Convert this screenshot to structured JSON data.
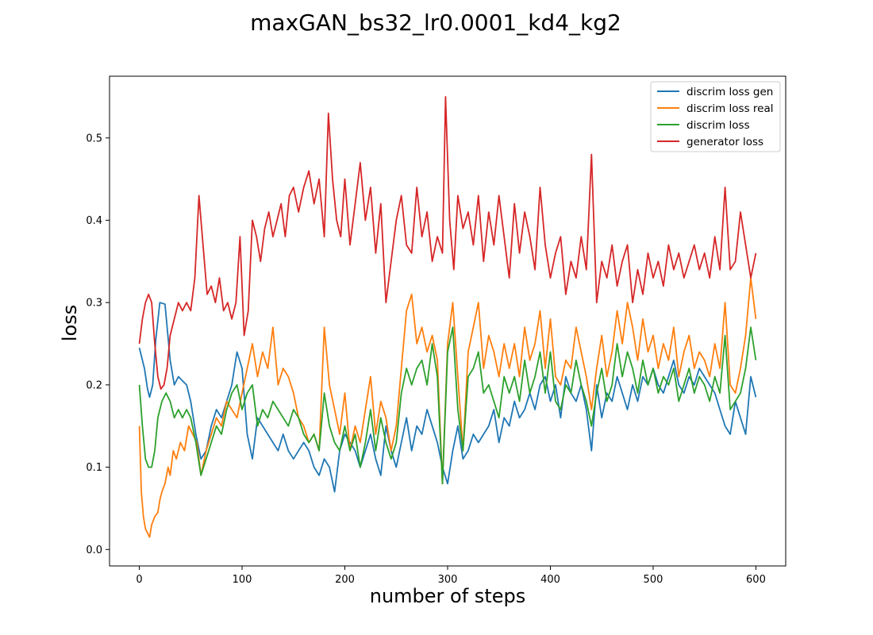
{
  "chart_data": {
    "type": "line",
    "title": "maxGAN_bs32_lr0.0001_kd4_kg2",
    "xlabel": "number of steps",
    "ylabel": "loss",
    "xlim": [
      -29,
      629
    ],
    "ylim": [
      -0.02,
      0.575
    ],
    "xticks": [
      0,
      100,
      200,
      300,
      400,
      500,
      600
    ],
    "yticks": [
      0.0,
      0.1,
      0.2,
      0.3,
      0.4,
      0.5
    ],
    "ytick_labels": [
      "0.0",
      "0.1",
      "0.2",
      "0.3",
      "0.4",
      "0.5"
    ],
    "grid": false,
    "legend": "top-right",
    "series": [
      {
        "name": "discrim loss gen",
        "color": "#1f77b4",
        "x": [
          0,
          5,
          8,
          10,
          13,
          16,
          20,
          25,
          30,
          34,
          38,
          42,
          46,
          50,
          55,
          60,
          65,
          70,
          75,
          80,
          85,
          90,
          95,
          100,
          105,
          110,
          115,
          120,
          125,
          130,
          135,
          140,
          145,
          150,
          155,
          160,
          165,
          170,
          175,
          180,
          185,
          190,
          195,
          200,
          205,
          210,
          215,
          220,
          225,
          230,
          235,
          240,
          245,
          250,
          255,
          260,
          265,
          270,
          275,
          280,
          285,
          290,
          295,
          300,
          305,
          310,
          315,
          320,
          325,
          330,
          335,
          340,
          345,
          350,
          355,
          360,
          365,
          370,
          375,
          380,
          385,
          390,
          395,
          400,
          405,
          410,
          415,
          420,
          425,
          430,
          435,
          440,
          445,
          450,
          455,
          460,
          465,
          470,
          475,
          480,
          485,
          490,
          495,
          500,
          505,
          510,
          515,
          520,
          525,
          530,
          535,
          540,
          545,
          550,
          555,
          560,
          565,
          570,
          575,
          580,
          585,
          590,
          595,
          600
        ],
        "y": [
          0.245,
          0.22,
          0.195,
          0.185,
          0.2,
          0.255,
          0.3,
          0.298,
          0.23,
          0.2,
          0.21,
          0.205,
          0.2,
          0.18,
          0.14,
          0.11,
          0.12,
          0.15,
          0.17,
          0.16,
          0.18,
          0.2,
          0.24,
          0.22,
          0.14,
          0.11,
          0.16,
          0.15,
          0.14,
          0.13,
          0.12,
          0.14,
          0.12,
          0.11,
          0.12,
          0.13,
          0.12,
          0.1,
          0.09,
          0.11,
          0.1,
          0.07,
          0.12,
          0.14,
          0.13,
          0.12,
          0.1,
          0.12,
          0.14,
          0.11,
          0.09,
          0.15,
          0.12,
          0.1,
          0.13,
          0.16,
          0.12,
          0.15,
          0.14,
          0.17,
          0.15,
          0.13,
          0.1,
          0.08,
          0.12,
          0.15,
          0.11,
          0.12,
          0.14,
          0.13,
          0.14,
          0.15,
          0.17,
          0.13,
          0.16,
          0.15,
          0.18,
          0.16,
          0.17,
          0.19,
          0.17,
          0.2,
          0.21,
          0.18,
          0.2,
          0.16,
          0.21,
          0.19,
          0.18,
          0.2,
          0.17,
          0.12,
          0.2,
          0.16,
          0.19,
          0.18,
          0.21,
          0.19,
          0.17,
          0.2,
          0.18,
          0.21,
          0.2,
          0.22,
          0.2,
          0.19,
          0.21,
          0.23,
          0.2,
          0.19,
          0.21,
          0.2,
          0.22,
          0.21,
          0.2,
          0.19,
          0.17,
          0.15,
          0.14,
          0.18,
          0.16,
          0.14,
          0.21,
          0.185
        ]
      },
      {
        "name": "discrim loss real",
        "color": "#ff7f0e",
        "x": [
          0,
          2,
          4,
          6,
          8,
          10,
          12,
          15,
          18,
          20,
          22,
          25,
          28,
          30,
          33,
          36,
          40,
          44,
          48,
          52,
          56,
          60,
          65,
          70,
          75,
          80,
          85,
          90,
          95,
          100,
          105,
          110,
          115,
          120,
          125,
          130,
          135,
          140,
          145,
          150,
          155,
          160,
          165,
          170,
          175,
          180,
          185,
          190,
          195,
          200,
          205,
          210,
          215,
          220,
          225,
          230,
          235,
          240,
          245,
          250,
          255,
          260,
          265,
          270,
          275,
          280,
          285,
          290,
          295,
          300,
          305,
          310,
          315,
          320,
          325,
          330,
          335,
          340,
          345,
          350,
          355,
          360,
          365,
          370,
          375,
          380,
          385,
          390,
          395,
          400,
          405,
          410,
          415,
          420,
          425,
          430,
          435,
          440,
          445,
          450,
          455,
          460,
          465,
          470,
          475,
          480,
          485,
          490,
          495,
          500,
          505,
          510,
          515,
          520,
          525,
          530,
          535,
          540,
          545,
          550,
          555,
          560,
          565,
          570,
          575,
          580,
          585,
          590,
          595,
          600
        ],
        "y": [
          0.15,
          0.07,
          0.04,
          0.025,
          0.02,
          0.015,
          0.03,
          0.04,
          0.045,
          0.06,
          0.07,
          0.08,
          0.1,
          0.09,
          0.12,
          0.11,
          0.13,
          0.12,
          0.15,
          0.14,
          0.13,
          0.09,
          0.12,
          0.14,
          0.16,
          0.15,
          0.18,
          0.17,
          0.16,
          0.19,
          0.22,
          0.25,
          0.21,
          0.24,
          0.22,
          0.27,
          0.2,
          0.22,
          0.21,
          0.19,
          0.16,
          0.15,
          0.13,
          0.14,
          0.12,
          0.27,
          0.2,
          0.17,
          0.14,
          0.19,
          0.12,
          0.15,
          0.13,
          0.17,
          0.21,
          0.14,
          0.18,
          0.16,
          0.12,
          0.15,
          0.22,
          0.29,
          0.31,
          0.25,
          0.27,
          0.24,
          0.26,
          0.23,
          0.08,
          0.25,
          0.3,
          0.21,
          0.12,
          0.24,
          0.27,
          0.3,
          0.22,
          0.26,
          0.24,
          0.21,
          0.25,
          0.22,
          0.25,
          0.21,
          0.27,
          0.23,
          0.25,
          0.29,
          0.22,
          0.28,
          0.21,
          0.2,
          0.23,
          0.22,
          0.27,
          0.24,
          0.21,
          0.17,
          0.22,
          0.26,
          0.21,
          0.24,
          0.29,
          0.25,
          0.3,
          0.27,
          0.23,
          0.28,
          0.24,
          0.26,
          0.22,
          0.25,
          0.23,
          0.27,
          0.21,
          0.24,
          0.26,
          0.22,
          0.24,
          0.23,
          0.21,
          0.25,
          0.22,
          0.3,
          0.2,
          0.19,
          0.22,
          0.26,
          0.33,
          0.28
        ]
      },
      {
        "name": "discrim loss",
        "color": "#2ca02c",
        "x": [
          0,
          3,
          6,
          9,
          12,
          15,
          18,
          22,
          26,
          30,
          34,
          38,
          42,
          46,
          50,
          55,
          60,
          65,
          70,
          75,
          80,
          85,
          90,
          95,
          100,
          105,
          110,
          115,
          120,
          125,
          130,
          135,
          140,
          145,
          150,
          155,
          160,
          165,
          170,
          175,
          180,
          185,
          190,
          195,
          200,
          205,
          210,
          215,
          220,
          225,
          230,
          235,
          240,
          245,
          250,
          255,
          260,
          265,
          270,
          275,
          280,
          285,
          290,
          295,
          300,
          305,
          310,
          315,
          320,
          325,
          330,
          335,
          340,
          345,
          350,
          355,
          360,
          365,
          370,
          375,
          380,
          385,
          390,
          395,
          400,
          405,
          410,
          415,
          420,
          425,
          430,
          435,
          440,
          445,
          450,
          455,
          460,
          465,
          470,
          475,
          480,
          485,
          490,
          495,
          500,
          505,
          510,
          515,
          520,
          525,
          530,
          535,
          540,
          545,
          550,
          555,
          560,
          565,
          570,
          575,
          580,
          585,
          590,
          595,
          600
        ],
        "y": [
          0.2,
          0.15,
          0.11,
          0.1,
          0.1,
          0.12,
          0.16,
          0.18,
          0.19,
          0.18,
          0.16,
          0.17,
          0.16,
          0.17,
          0.16,
          0.13,
          0.09,
          0.11,
          0.13,
          0.15,
          0.14,
          0.17,
          0.19,
          0.2,
          0.17,
          0.19,
          0.2,
          0.15,
          0.17,
          0.16,
          0.18,
          0.17,
          0.16,
          0.15,
          0.17,
          0.16,
          0.14,
          0.13,
          0.14,
          0.12,
          0.19,
          0.15,
          0.13,
          0.12,
          0.15,
          0.12,
          0.14,
          0.1,
          0.13,
          0.17,
          0.12,
          0.16,
          0.13,
          0.11,
          0.13,
          0.19,
          0.22,
          0.2,
          0.22,
          0.23,
          0.2,
          0.25,
          0.21,
          0.08,
          0.24,
          0.27,
          0.17,
          0.12,
          0.21,
          0.22,
          0.24,
          0.19,
          0.2,
          0.18,
          0.16,
          0.21,
          0.19,
          0.21,
          0.18,
          0.23,
          0.19,
          0.21,
          0.24,
          0.19,
          0.24,
          0.18,
          0.17,
          0.2,
          0.19,
          0.23,
          0.2,
          0.18,
          0.15,
          0.19,
          0.22,
          0.18,
          0.2,
          0.25,
          0.21,
          0.24,
          0.22,
          0.19,
          0.23,
          0.2,
          0.22,
          0.19,
          0.21,
          0.2,
          0.22,
          0.18,
          0.2,
          0.22,
          0.19,
          0.21,
          0.2,
          0.18,
          0.21,
          0.19,
          0.26,
          0.17,
          0.18,
          0.19,
          0.22,
          0.27,
          0.23
        ]
      },
      {
        "name": "generator loss",
        "color": "#d62728",
        "x": [
          0,
          3,
          6,
          9,
          12,
          15,
          18,
          21,
          24,
          27,
          30,
          34,
          38,
          42,
          46,
          50,
          54,
          58,
          62,
          66,
          70,
          74,
          78,
          82,
          86,
          90,
          94,
          98,
          102,
          106,
          110,
          114,
          118,
          122,
          126,
          130,
          134,
          138,
          142,
          146,
          150,
          155,
          160,
          165,
          170,
          175,
          180,
          184,
          188,
          192,
          196,
          200,
          205,
          210,
          215,
          220,
          225,
          230,
          235,
          240,
          245,
          250,
          255,
          260,
          265,
          270,
          275,
          280,
          285,
          290,
          295,
          298,
          302,
          306,
          310,
          315,
          320,
          325,
          330,
          335,
          340,
          345,
          350,
          355,
          360,
          365,
          370,
          375,
          380,
          385,
          390,
          395,
          400,
          405,
          410,
          415,
          420,
          425,
          430,
          435,
          440,
          445,
          450,
          455,
          460,
          465,
          470,
          475,
          480,
          485,
          490,
          495,
          500,
          505,
          510,
          515,
          520,
          525,
          530,
          535,
          540,
          545,
          550,
          555,
          560,
          565,
          570,
          575,
          580,
          585,
          590,
          595,
          600
        ],
        "y": [
          0.25,
          0.28,
          0.3,
          0.31,
          0.3,
          0.25,
          0.21,
          0.195,
          0.2,
          0.22,
          0.26,
          0.28,
          0.3,
          0.29,
          0.3,
          0.29,
          0.33,
          0.43,
          0.37,
          0.31,
          0.32,
          0.3,
          0.33,
          0.29,
          0.3,
          0.28,
          0.3,
          0.38,
          0.26,
          0.29,
          0.4,
          0.38,
          0.35,
          0.39,
          0.41,
          0.38,
          0.4,
          0.42,
          0.38,
          0.43,
          0.44,
          0.41,
          0.44,
          0.46,
          0.42,
          0.45,
          0.38,
          0.53,
          0.45,
          0.4,
          0.38,
          0.45,
          0.37,
          0.42,
          0.47,
          0.4,
          0.44,
          0.36,
          0.42,
          0.3,
          0.35,
          0.4,
          0.43,
          0.37,
          0.36,
          0.44,
          0.38,
          0.41,
          0.35,
          0.38,
          0.36,
          0.55,
          0.4,
          0.34,
          0.43,
          0.39,
          0.41,
          0.37,
          0.43,
          0.35,
          0.41,
          0.37,
          0.43,
          0.38,
          0.33,
          0.42,
          0.36,
          0.41,
          0.38,
          0.34,
          0.44,
          0.37,
          0.33,
          0.36,
          0.38,
          0.31,
          0.35,
          0.33,
          0.38,
          0.34,
          0.48,
          0.3,
          0.35,
          0.33,
          0.37,
          0.32,
          0.35,
          0.37,
          0.3,
          0.34,
          0.31,
          0.36,
          0.33,
          0.35,
          0.32,
          0.37,
          0.34,
          0.36,
          0.33,
          0.35,
          0.37,
          0.34,
          0.36,
          0.33,
          0.38,
          0.34,
          0.44,
          0.34,
          0.35,
          0.41,
          0.37,
          0.33,
          0.36
        ]
      }
    ]
  }
}
